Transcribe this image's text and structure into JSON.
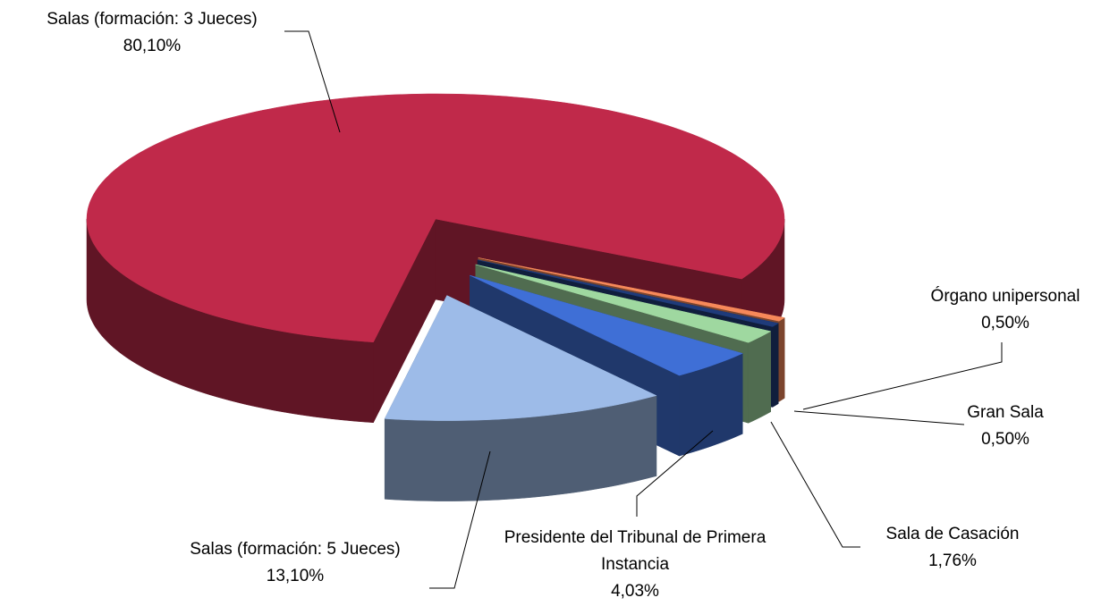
{
  "chart_data": {
    "type": "pie3d",
    "categories": [
      "Salas (formación: 3 Jueces)",
      "Salas (formación: 5 Jueces)",
      "Presidente del Tribunal de Primera Instancia",
      "Sala de Casación",
      "Gran Sala",
      "Órgano unipersonal"
    ],
    "values": [
      80.1,
      13.1,
      4.03,
      1.76,
      0.5,
      0.5
    ],
    "value_labels": [
      "80,10%",
      "13,10%",
      "4,03%",
      "1,76%",
      "0,50%",
      "0,50%"
    ],
    "colors": [
      "#c0294a",
      "#9dbbe8",
      "#3f6fd6",
      "#9fd8a0",
      "#1f3b7a",
      "#f7895a"
    ]
  }
}
